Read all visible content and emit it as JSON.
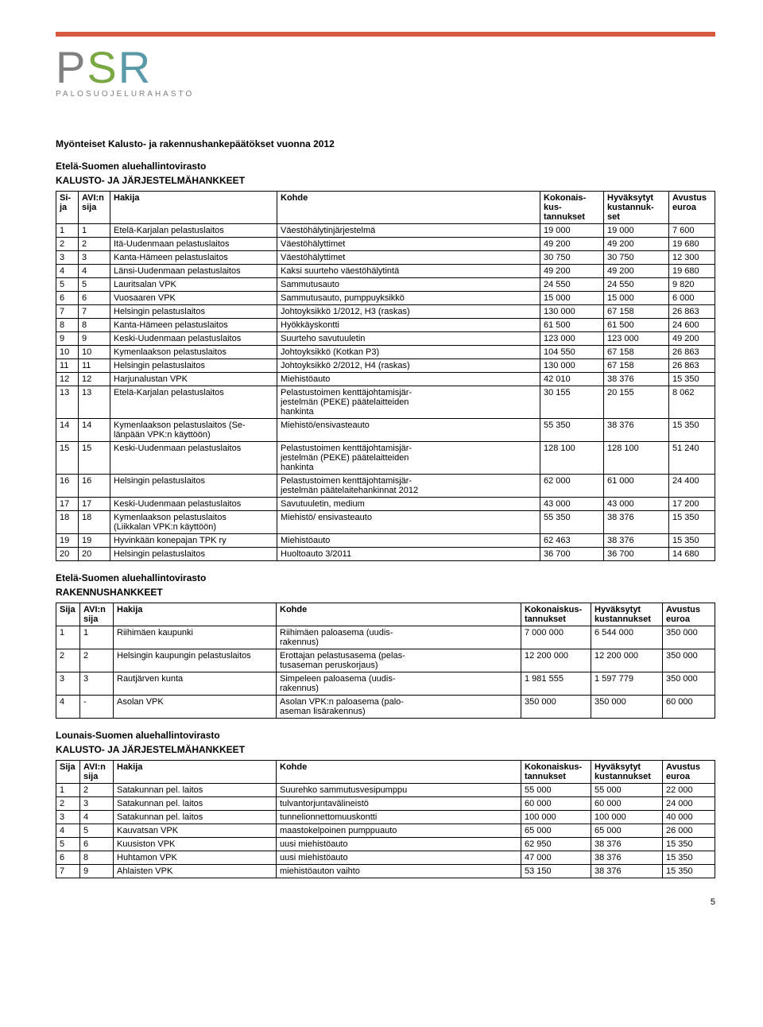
{
  "logo": {
    "main_p": "P",
    "main_s": "S",
    "main_r": "R",
    "sub": "PALOSUOJELURAHASTO"
  },
  "title": "Myönteiset Kalusto- ja rakennushankepäätökset vuonna 2012",
  "section1_title": "Etelä-Suomen aluehallintovirasto",
  "section1_sub": "KALUSTO- JA JÄRJESTELMÄHANKKEET",
  "headers": {
    "sija": "Si-\nja",
    "avi": "AVI:n\nsija",
    "hakija": "Hakija",
    "kohde": "Kohde",
    "kok": "Kokonais-\nkus-\ntannukset",
    "hyv": "Hyväksytyt\nkustannuk-\nset",
    "avu": "Avustus\neuroa"
  },
  "headers_b": {
    "sija": "Sija",
    "avi": "AVI:n\nsija",
    "hakija": "Hakija",
    "kohde": "Kohde",
    "kok": "Kokonaiskus-\ntannukset",
    "hyv": "Hyväksytyt\nkustannukset",
    "avu": "Avustus\neuroa"
  },
  "table1": [
    [
      "1",
      "1",
      "Etelä-Karjalan pelastuslaitos",
      "Väestöhälytinjärjestelmä",
      "19 000",
      "19 000",
      "7 600"
    ],
    [
      "2",
      "2",
      "Itä-Uudenmaan pelastuslaitos",
      "Väestöhälyttimet",
      "49 200",
      "49 200",
      "19 680"
    ],
    [
      "3",
      "3",
      "Kanta-Hämeen pelastuslaitos",
      "Väestöhälyttimet",
      "30 750",
      "30 750",
      "12 300"
    ],
    [
      "4",
      "4",
      "Länsi-Uudenmaan pelastuslaitos",
      "Kaksi suurteho väestöhälytintä",
      "49 200",
      "49 200",
      "19 680"
    ],
    [
      "5",
      "5",
      "Lauritsalan VPK",
      "Sammutusauto",
      "24 550",
      "24 550",
      "9 820"
    ],
    [
      "6",
      "6",
      "Vuosaaren VPK",
      "Sammutusauto, pumppuyksikkö",
      "15 000",
      "15 000",
      "6 000"
    ],
    [
      "7",
      "7",
      "Helsingin pelastuslaitos",
      "Johtoyksikkö 1/2012, H3 (raskas)",
      "130 000",
      "67 158",
      "26 863"
    ],
    [
      "8",
      "8",
      "Kanta-Hämeen pelastuslaitos",
      "Hyökkäyskontti",
      "61 500",
      "61 500",
      "24 600"
    ],
    [
      "9",
      "9",
      "Keski-Uudenmaan pelastuslaitos",
      "Suurteho savutuuletin",
      "123 000",
      "123 000",
      "49 200"
    ],
    [
      "10",
      "10",
      "Kymenlaakson pelastuslaitos",
      "Johtoyksikkö (Kotkan P3)",
      "104 550",
      "67 158",
      "26 863"
    ],
    [
      "11",
      "11",
      "Helsingin pelastuslaitos",
      "Johtoyksikkö 2/2012, H4 (raskas)",
      "130 000",
      "67 158",
      "26 863"
    ],
    [
      "12",
      "12",
      "Harjunalustan VPK",
      "Miehistöauto",
      "42 010",
      "38 376",
      "15 350"
    ],
    [
      "13",
      "13",
      "Etelä-Karjalan pelastuslaitos",
      "Pelastustoimen kenttäjohtamisjär-\njestelmän (PEKE) päätelaitteiden\nhankinta",
      "30 155",
      "20 155",
      "8 062"
    ],
    [
      "14",
      "14",
      "Kymenlaakson pelastuslaitos (Se-\nlänpään VPK:n käyttöön)",
      "Miehistö/ensivasteauto",
      "55 350",
      "38 376",
      "15 350"
    ],
    [
      "15",
      "15",
      "Keski-Uudenmaan pelastuslaitos",
      "Pelastustoimen kenttäjohtamisjär-\njestelmän (PEKE) päätelaitteiden\nhankinta",
      "128 100",
      "128 100",
      "51 240"
    ],
    [
      "16",
      "16",
      "Helsingin pelastuslaitos",
      "Pelastustoimen kenttäjohtamisjär-\njestelmän päätelaitehankinnat 2012",
      "62 000",
      "61 000",
      "24 400"
    ],
    [
      "17",
      "17",
      "Keski-Uudenmaan pelastuslaitos",
      "Savutuuletin, medium",
      "43 000",
      "43 000",
      "17 200"
    ],
    [
      "18",
      "18",
      "Kymenlaakson pelastuslaitos\n(Liikkalan VPK:n käyttöön)",
      "Miehistö/ ensivasteauto",
      "55 350",
      "38 376",
      "15 350"
    ],
    [
      "19",
      "19",
      "Hyvinkään konepajan TPK ry",
      "Miehistöauto",
      "62 463",
      "38 376",
      "15 350"
    ],
    [
      "20",
      "20",
      "Helsingin pelastuslaitos",
      "Huoltoauto 3/2011",
      "36 700",
      "36 700",
      "14 680"
    ]
  ],
  "section2_title": "Etelä-Suomen aluehallintovirasto",
  "section2_sub": "RAKENNUSHANKKEET",
  "table2": [
    [
      "1",
      "1",
      "Riihimäen kaupunki",
      "Riihimäen paloasema (uudis-\nrakennus)",
      "7 000 000",
      "6 544 000",
      "350 000"
    ],
    [
      "2",
      "2",
      "Helsingin kaupungin pelastuslaitos",
      "Erottajan pelastusasema (pelas-\ntusaseman peruskorjaus)",
      "12 200 000",
      "12 200 000",
      "350 000"
    ],
    [
      "3",
      "3",
      "Rautjärven kunta",
      "Simpeleen paloasema (uudis-\nrakennus)",
      "1 981 555",
      "1 597 779",
      "350 000"
    ],
    [
      "4",
      "-",
      "Asolan VPK",
      "Asolan VPK:n paloasema (palo-\naseman lisärakennus)",
      "350 000",
      "350 000",
      "60 000"
    ]
  ],
  "section3_title": "Lounais-Suomen aluehallintovirasto",
  "section3_sub": "KALUSTO- JA JÄRJESTELMÄHANKKEET",
  "table3": [
    [
      "1",
      "2",
      "Satakunnan pel. laitos",
      "Suurehko sammutusvesipumppu",
      "55 000",
      "55 000",
      "22 000"
    ],
    [
      "2",
      "3",
      "Satakunnan pel. laitos",
      "tulvantorjuntavälineistö",
      "60 000",
      "60 000",
      "24 000"
    ],
    [
      "3",
      "4",
      "Satakunnan pel. laitos",
      "tunnelionnettomuuskontti",
      "100 000",
      "100 000",
      "40 000"
    ],
    [
      "4",
      "5",
      "Kauvatsan VPK",
      "maastokelpoinen pumppuauto",
      "65 000",
      "65 000",
      "26 000"
    ],
    [
      "5",
      "6",
      "Kuusiston VPK",
      "uusi miehistöauto",
      "62 950",
      "38 376",
      "15 350"
    ],
    [
      "6",
      "8",
      "Huhtamon VPK",
      "uusi miehistöauto",
      "47 000",
      "38 376",
      "15 350"
    ],
    [
      "7",
      "9",
      "Ahlaisten VPK",
      "miehistöauton vaihto",
      "53 150",
      "38 376",
      "15 350"
    ]
  ],
  "page_number": "5"
}
